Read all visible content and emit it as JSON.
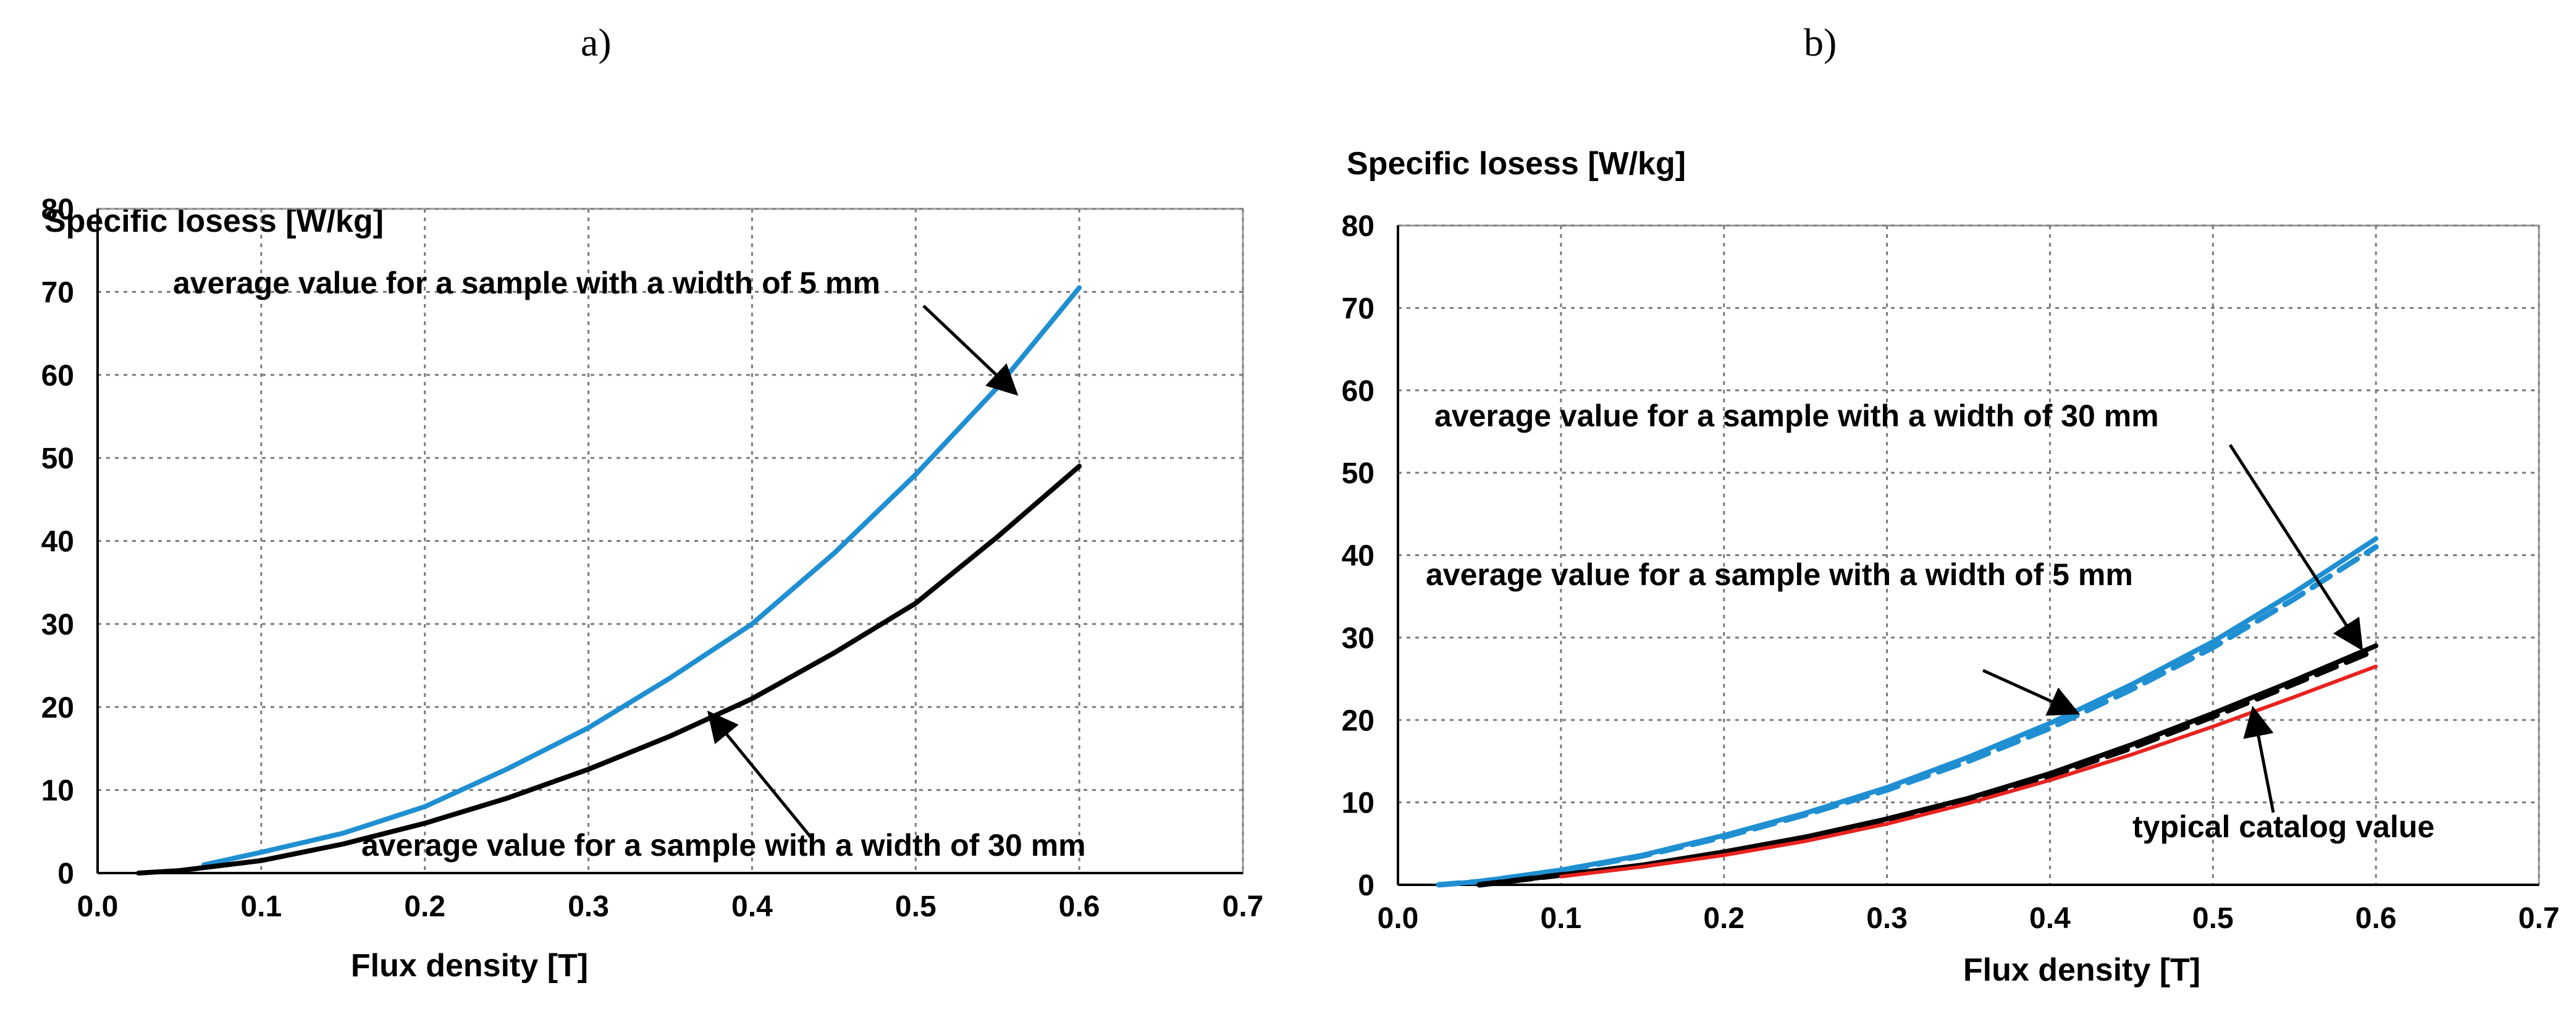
{
  "chart_data": [
    {
      "id": "a",
      "type": "line",
      "panel_label": "a)",
      "ylabel": "Specific losess [W/kg]",
      "xlabel": "Flux density [T]",
      "xlim": [
        0.0,
        0.7
      ],
      "ylim": [
        0,
        80
      ],
      "xticks": [
        "0.0",
        "0.1",
        "0.2",
        "0.3",
        "0.4",
        "0.5",
        "0.6",
        "0.7"
      ],
      "yticks": [
        "0",
        "10",
        "20",
        "30",
        "40",
        "50",
        "60",
        "70",
        "80"
      ],
      "grid": true,
      "series": [
        {
          "name": "average value for a sample with a width of 5 mm",
          "color": "#1f8fd2",
          "dashed": false,
          "x": [
            0.065,
            0.1,
            0.15,
            0.2,
            0.25,
            0.3,
            0.35,
            0.4,
            0.45,
            0.5,
            0.55,
            0.6
          ],
          "y": [
            1.0,
            2.5,
            4.8,
            8.0,
            12.5,
            17.5,
            23.5,
            30.0,
            38.5,
            48.0,
            58.5,
            70.5
          ]
        },
        {
          "name": "average value for a sample with a width of 30 mm",
          "color": "#000000",
          "dashed": false,
          "x": [
            0.025,
            0.05,
            0.1,
            0.15,
            0.2,
            0.25,
            0.3,
            0.35,
            0.4,
            0.45,
            0.5,
            0.55,
            0.6
          ],
          "y": [
            0.0,
            0.3,
            1.5,
            3.5,
            6.0,
            9.0,
            12.5,
            16.5,
            21.0,
            26.5,
            32.5,
            40.5,
            49.0
          ]
        }
      ],
      "annotations": [
        {
          "text": "average value for a sample with a width of 5 mm",
          "arrow_to": [
            0.56,
            58
          ]
        },
        {
          "text": "average value for a sample with a width of 30 mm",
          "arrow_to": [
            0.375,
            19
          ]
        }
      ]
    },
    {
      "id": "b",
      "type": "line",
      "panel_label": "b)",
      "ylabel": "Specific losess [W/kg]",
      "xlabel": "Flux density [T]",
      "xlim": [
        0.0,
        0.7
      ],
      "ylim": [
        0,
        80
      ],
      "xticks": [
        "0.0",
        "0.1",
        "0.2",
        "0.3",
        "0.4",
        "0.5",
        "0.6",
        "0.7"
      ],
      "yticks": [
        "0",
        "10",
        "20",
        "30",
        "40",
        "50",
        "60",
        "70",
        "80"
      ],
      "grid": true,
      "series": [
        {
          "name": "average value for a sample with a width of 5 mm",
          "color": "#1f8fd2",
          "dashed": false,
          "x": [
            0.025,
            0.05,
            0.1,
            0.15,
            0.2,
            0.25,
            0.3,
            0.35,
            0.4,
            0.45,
            0.5,
            0.55,
            0.6
          ],
          "y": [
            0.0,
            0.4,
            1.8,
            3.6,
            6.0,
            8.7,
            11.8,
            15.5,
            19.6,
            24.3,
            29.5,
            35.5,
            42.0
          ]
        },
        {
          "name": "average value for a sample with a width of 5 mm (dashed)",
          "color": "#1f8fd2",
          "dashed": true,
          "x": [
            0.025,
            0.05,
            0.1,
            0.15,
            0.2,
            0.25,
            0.3,
            0.35,
            0.4,
            0.45,
            0.5,
            0.55,
            0.6
          ],
          "y": [
            0.0,
            0.4,
            1.7,
            3.5,
            5.8,
            8.5,
            11.5,
            15.0,
            19.0,
            23.7,
            28.8,
            34.7,
            41.0
          ]
        },
        {
          "name": "average value for a sample with a width of 30 mm",
          "color": "#000000",
          "dashed": false,
          "x": [
            0.05,
            0.1,
            0.15,
            0.2,
            0.25,
            0.3,
            0.35,
            0.4,
            0.45,
            0.5,
            0.55,
            0.6
          ],
          "y": [
            0.0,
            1.2,
            2.4,
            4.0,
            5.8,
            8.0,
            10.5,
            13.5,
            17.0,
            20.8,
            24.8,
            29.0
          ]
        },
        {
          "name": "average value for a sample with a width of 30 mm (dashed)",
          "color": "#000000",
          "dashed": true,
          "x": [
            0.05,
            0.1,
            0.15,
            0.2,
            0.25,
            0.3,
            0.35,
            0.4,
            0.45,
            0.5,
            0.55,
            0.6
          ],
          "y": [
            0.0,
            1.2,
            2.3,
            3.9,
            5.7,
            7.8,
            10.3,
            13.2,
            16.6,
            20.4,
            24.4,
            28.5
          ]
        },
        {
          "name": "typical catalog value",
          "color": "#e8221e",
          "dashed": false,
          "x": [
            0.1,
            0.15,
            0.2,
            0.25,
            0.3,
            0.35,
            0.4,
            0.45,
            0.5,
            0.55,
            0.6
          ],
          "y": [
            1.0,
            2.2,
            3.6,
            5.3,
            7.4,
            9.9,
            12.7,
            15.8,
            19.2,
            22.8,
            26.5
          ]
        }
      ],
      "annotations": [
        {
          "text": "average value for a sample with a width of 30 mm",
          "arrow_to": [
            0.59,
            29
          ]
        },
        {
          "text": "average value for a sample with a width of 5 mm",
          "arrow_to": [
            0.415,
            21
          ]
        },
        {
          "text": "typical catalog value",
          "arrow_to": [
            0.525,
            21
          ]
        }
      ]
    }
  ]
}
